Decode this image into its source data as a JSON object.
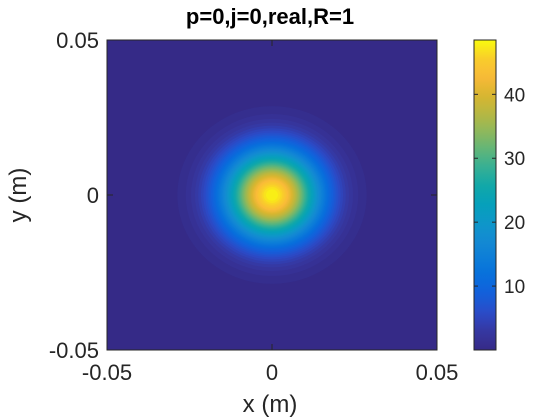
{
  "chart_data": {
    "type": "heatmap",
    "title": "p=0,j=0,real,R=1",
    "xlabel": "x (m)",
    "ylabel": "y (m)",
    "xlim": [
      -0.05,
      0.05
    ],
    "ylim": [
      -0.05,
      0.05
    ],
    "x_ticks": [
      -0.05,
      0,
      0.05
    ],
    "x_tick_labels": [
      "-0.05",
      "0",
      "0.05"
    ],
    "y_ticks": [
      -0.05,
      0,
      0.05
    ],
    "y_tick_labels": [
      "-0.05",
      "0",
      "0.05"
    ],
    "colormap": "parula",
    "colorbar": {
      "range": [
        0,
        48.5
      ],
      "ticks": [
        10,
        20,
        30,
        40
      ],
      "tick_labels": [
        "10",
        "20",
        "30",
        "40"
      ],
      "location": "right"
    },
    "field": {
      "shape": "gaussian",
      "center": [
        0,
        0
      ],
      "peak_value": 48.5,
      "beam_radius_w": 0.02
    },
    "grid": false
  }
}
